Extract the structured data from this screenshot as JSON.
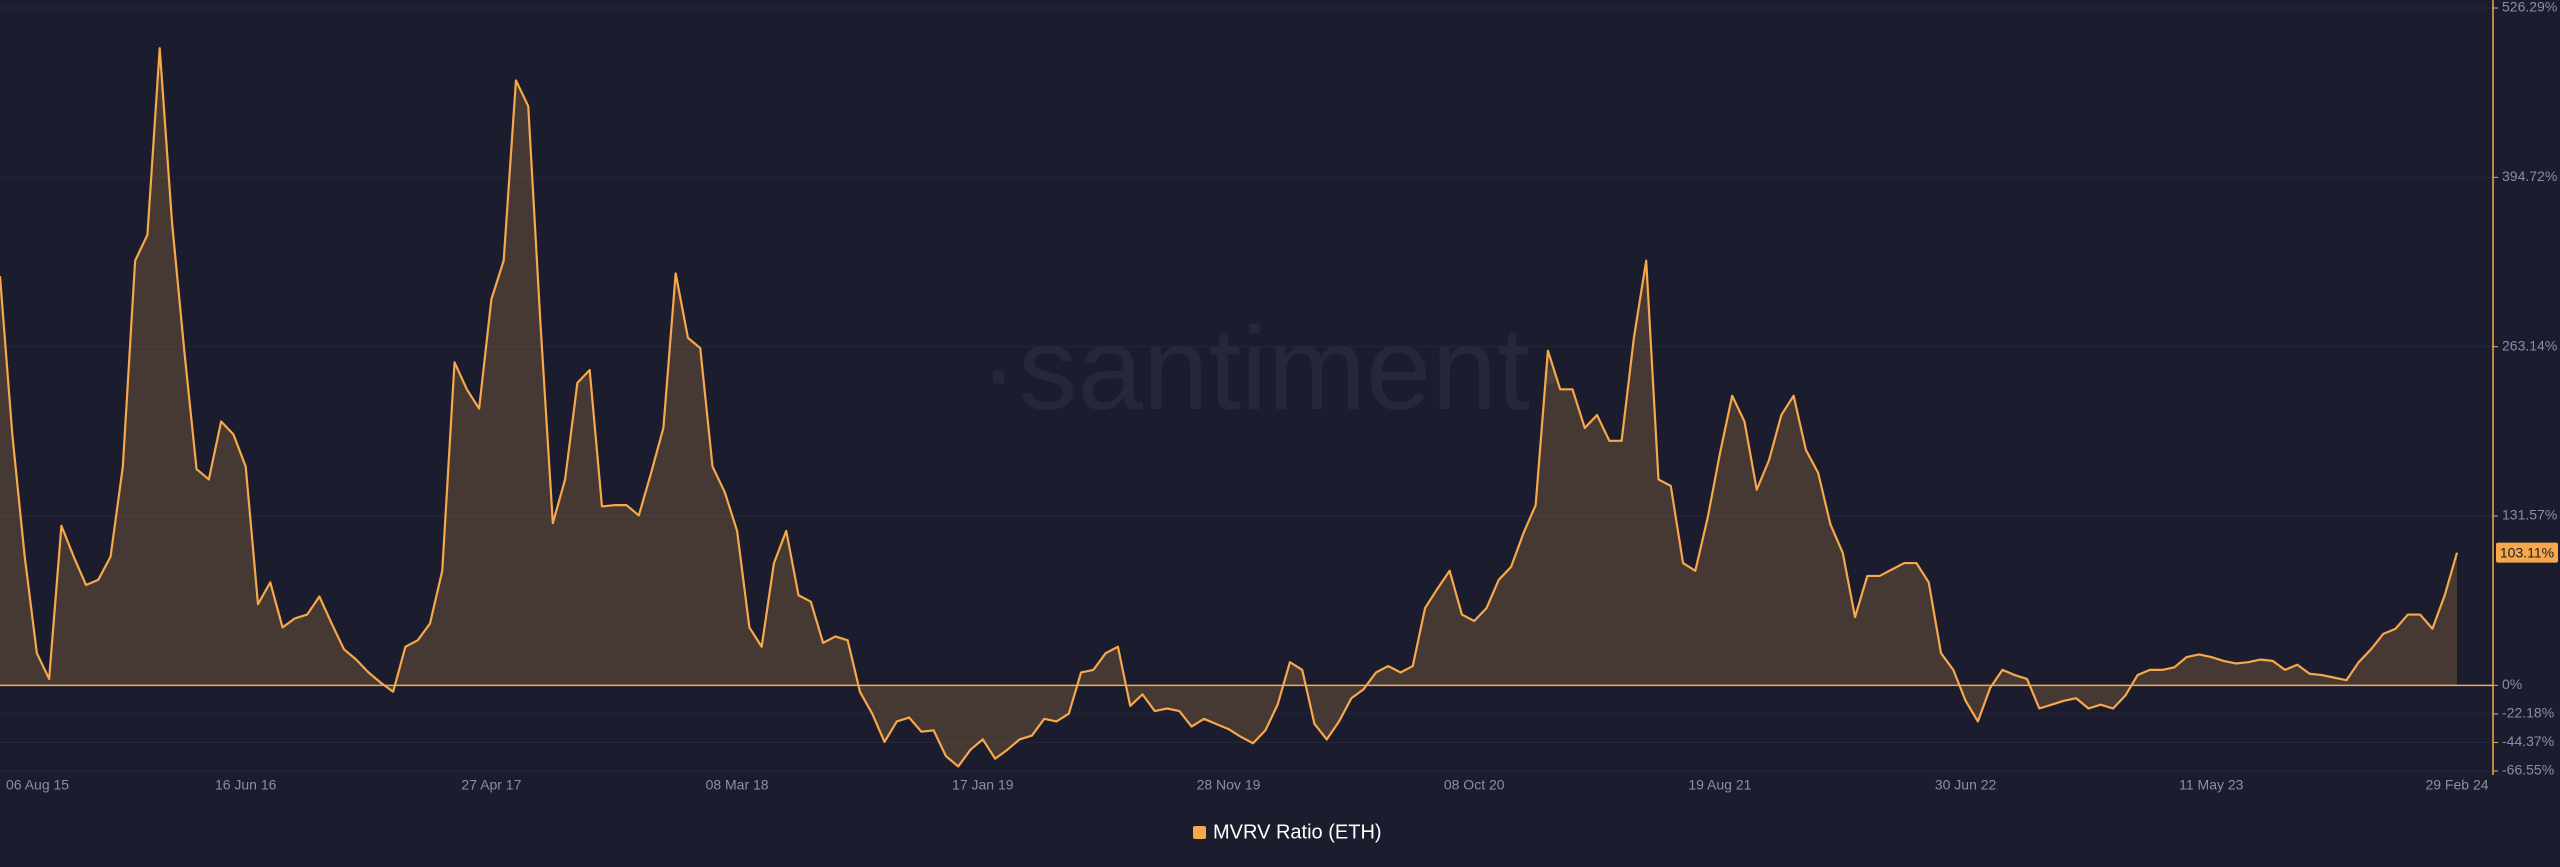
{
  "chart_data": {
    "type": "area",
    "watermark": "·santiment·",
    "categories": [
      "06 Aug 15",
      null,
      null,
      null,
      null,
      null,
      null,
      null,
      null,
      null,
      null,
      null,
      null,
      null,
      null,
      null,
      null,
      null,
      null,
      null,
      "16 Jun 16",
      null,
      null,
      null,
      null,
      null,
      null,
      null,
      null,
      null,
      null,
      null,
      null,
      null,
      null,
      null,
      null,
      null,
      null,
      null,
      "27 Apr 17",
      null,
      null,
      null,
      null,
      null,
      null,
      null,
      null,
      null,
      null,
      null,
      null,
      null,
      null,
      null,
      null,
      null,
      null,
      null,
      "08 Mar 18",
      null,
      null,
      null,
      null,
      null,
      null,
      null,
      null,
      null,
      null,
      null,
      null,
      null,
      null,
      null,
      null,
      null,
      null,
      null,
      "17 Jan 19",
      null,
      null,
      null,
      null,
      null,
      null,
      null,
      null,
      null,
      null,
      null,
      null,
      null,
      null,
      null,
      null,
      null,
      null,
      null,
      "28 Nov 19",
      null,
      null,
      null,
      null,
      null,
      null,
      null,
      null,
      null,
      null,
      null,
      null,
      null,
      null,
      null,
      null,
      null,
      null,
      null,
      "08 Oct 20",
      null,
      null,
      null,
      null,
      null,
      null,
      null,
      null,
      null,
      null,
      null,
      null,
      null,
      null,
      null,
      null,
      null,
      null,
      null,
      "19 Aug 21",
      null,
      null,
      null,
      null,
      null,
      null,
      null,
      null,
      null,
      null,
      null,
      null,
      null,
      null,
      null,
      null,
      null,
      null,
      null,
      "30 Jun 22",
      null,
      null,
      null,
      null,
      null,
      null,
      null,
      null,
      null,
      null,
      null,
      null,
      null,
      null,
      null,
      null,
      null,
      null,
      null,
      "11 May 23",
      null,
      null,
      null,
      null,
      null,
      null,
      null,
      null,
      null,
      null,
      null,
      null,
      null,
      null,
      null,
      null,
      null,
      null,
      null,
      "29 Feb 24"
    ],
    "series": [
      {
        "name": "MVRV Ratio (ETH)",
        "color": "#f7a84a",
        "values": [
          318,
          195,
          101,
          25,
          5,
          124,
          100,
          78,
          82,
          100,
          170,
          330,
          350,
          495,
          360,
          260,
          168,
          160,
          205,
          195,
          170,
          63,
          80,
          45,
          52,
          55,
          69,
          48,
          28,
          20,
          10,
          2,
          -5,
          30,
          35,
          48,
          89,
          251,
          230,
          215,
          300,
          330,
          470,
          450,
          280,
          126,
          160,
          235,
          245,
          139,
          140,
          140,
          132,
          165,
          200,
          320,
          270,
          262,
          170,
          150,
          120,
          45,
          30,
          95,
          120,
          70,
          65,
          33,
          38,
          35,
          -5,
          -22,
          -44,
          -28,
          -25,
          -36,
          -35,
          -55,
          -63,
          -50,
          -42,
          -57,
          -50,
          -42,
          -39,
          -26,
          -28,
          -22,
          10,
          12,
          25,
          30,
          -16,
          -7,
          -20,
          -18,
          -20,
          -32,
          -26,
          -30,
          -34,
          -40,
          -45,
          -35,
          -15,
          18,
          12,
          -30,
          -42,
          -28,
          -10,
          -3,
          10,
          15,
          10,
          15,
          60,
          75,
          89,
          55,
          50,
          60,
          82,
          92,
          118,
          140,
          260,
          230,
          230,
          200,
          210,
          190,
          190,
          270,
          330,
          160,
          155,
          95,
          89,
          130,
          180,
          225,
          205,
          152,
          175,
          210,
          225,
          183,
          165,
          125,
          103,
          53,
          85,
          85,
          90,
          95,
          95,
          80,
          25,
          12,
          -12,
          -28,
          -2,
          12,
          8,
          5,
          -18,
          -15,
          -12,
          -10,
          -18,
          -15,
          -18,
          -8,
          8,
          12,
          12,
          14,
          22,
          24,
          22,
          19,
          17,
          18,
          20,
          19,
          12,
          16,
          9,
          8,
          6,
          4,
          18,
          28,
          40,
          44,
          55,
          55,
          44,
          70,
          103.11
        ]
      }
    ],
    "current_value": {
      "value": 103.11,
      "label": "103.11%"
    },
    "ylim": [
      -66.55,
      526.29
    ],
    "yticks": [
      {
        "value": -66.55,
        "label": "-66.55%"
      },
      {
        "value": -44.37,
        "label": "-44.37%"
      },
      {
        "value": -22.18,
        "label": "-22.18%"
      },
      {
        "value": 0,
        "label": "0%"
      },
      {
        "value": 131.57,
        "label": "131.57%"
      },
      {
        "value": 263.14,
        "label": "263.14%"
      },
      {
        "value": 394.72,
        "label": "394.72%"
      },
      {
        "value": 526.29,
        "label": "526.29%"
      }
    ],
    "grid": true,
    "legend": "bottom"
  }
}
